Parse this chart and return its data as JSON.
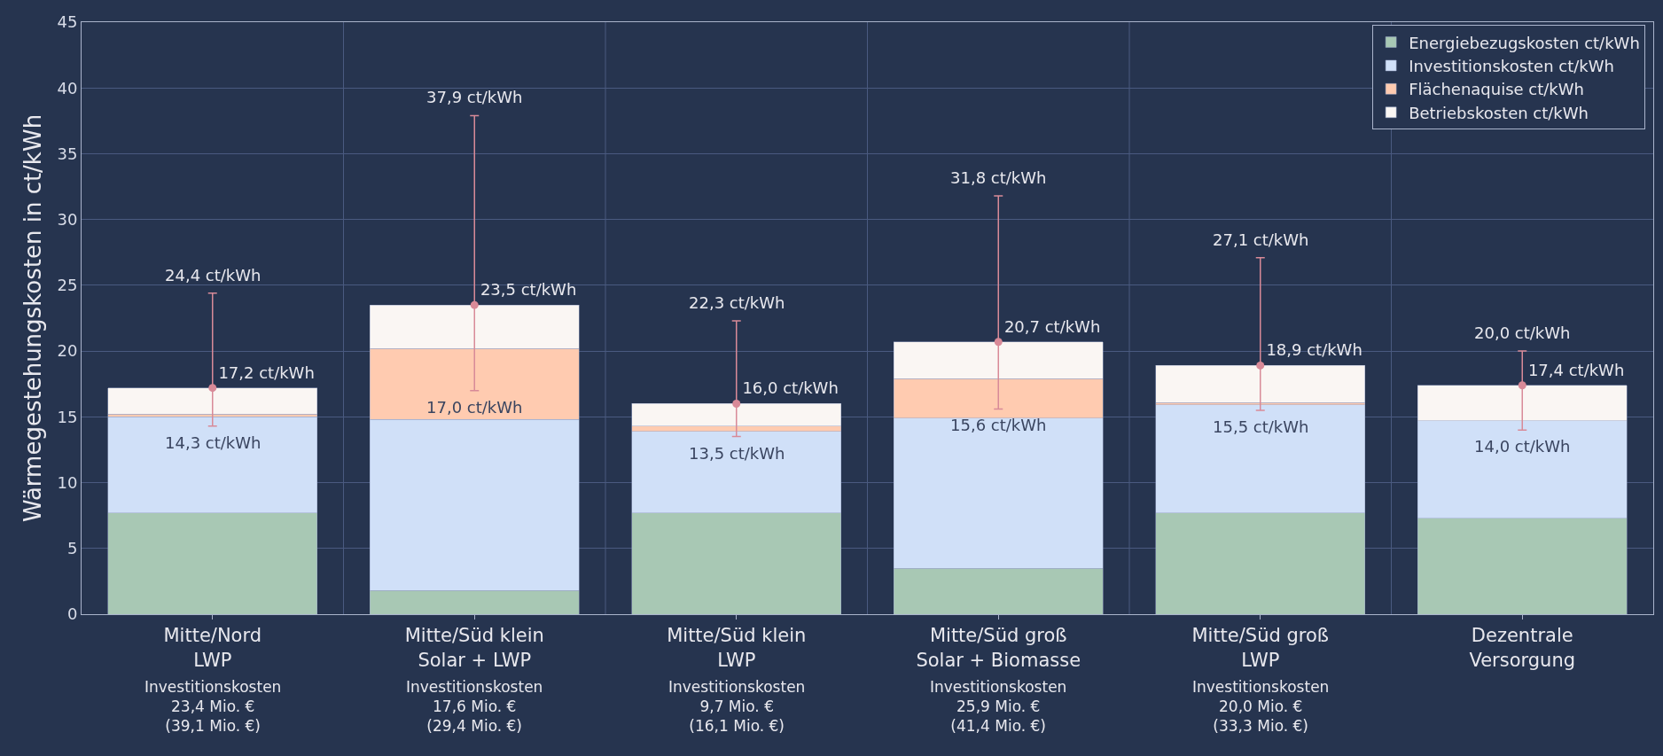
{
  "chart_data": {
    "type": "bar",
    "stacked": true,
    "ylabel": "Wärmegestehungskosten in ct/kWh",
    "categories": [
      "Mitte/Nord\nLWP",
      "Mitte/Süd klein\nSolar + LWP",
      "Mitte/Süd klein\nLWP",
      "Mitte/Süd groß\nSolar + Biomasse",
      "Mitte/Süd groß\nLWP",
      "Dezentrale\nVersorgung"
    ],
    "series": [
      {
        "name": "Energiebezugskosten ct/kWh",
        "color": "#a8c8b4",
        "values": [
          7.7,
          1.8,
          7.7,
          3.5,
          7.7,
          7.3
        ]
      },
      {
        "name": "Investitionskosten ct/kWh",
        "color": "#d0e0f8",
        "values": [
          7.3,
          13.0,
          6.2,
          11.4,
          8.2,
          7.4
        ]
      },
      {
        "name": "Flächenaquise ct/kWh",
        "color": "#ffcbb0",
        "values": [
          0.2,
          5.4,
          0.4,
          3.0,
          0.2,
          0
        ]
      },
      {
        "name": "Betriebskosten ct/kWh",
        "color": "#faf6f3",
        "values": [
          2.0,
          3.3,
          1.7,
          2.8,
          2.8,
          2.7
        ]
      },
      {
        "type": "scatter",
        "color": "#d88a98",
        "x": [
          "Mitte/Nord\nLWP",
          "Mitte/Süd klein\nSolar + LWP",
          "Mitte/Süd klein\nLWP",
          "Mitte/Süd groß\nSolar + Biomasse",
          "Mitte/Süd groß\nLWP",
          "Dezentrale\nVersorgung"
        ],
        "values": [
          17.2,
          23.5,
          16.0,
          20.7,
          18.9,
          17.4
        ],
        "errors": [
          [
            14.3,
            24.4
          ],
          [
            17.0,
            37.9
          ],
          [
            13.5,
            22.3
          ],
          [
            15.6,
            31.8
          ],
          [
            15.5,
            27.1
          ],
          [
            14.0,
            20.0
          ]
        ],
        "value_labels": [
          "17,2 ct/kWh",
          "23,5 ct/kWh",
          "16,0 ct/kWh",
          "20,7 ct/kWh",
          "18,9 ct/kWh",
          "17,4 ct/kWh"
        ]
      }
    ],
    "annotations": [
      {
        "text": "24,4 ct/kWh",
        "x": "Mitte/Nord\nLWP",
        "y": 24.4
      },
      {
        "text": "14,3 ct/kWh",
        "x": "Mitte/Nord\nLWP",
        "y": 14.3
      },
      {
        "text": "37,9 ct/kWh",
        "x": "Mitte/Süd klein\nSolar + LWP",
        "y": 37.9
      },
      {
        "text": "17,0 ct/kWh",
        "x": "Mitte/Süd klein\nSolar + LWP",
        "y": 17.0
      },
      {
        "text": "22,3 ct/kWh",
        "x": "Mitte/Süd klein\nLWP",
        "y": 22.3
      },
      {
        "text": "13,5 ct/kWh",
        "x": "Mitte/Süd klein\nLWP",
        "y": 13.5
      },
      {
        "text": "31,8 ct/kWh",
        "x": "Mitte/Süd groß\nSolar + Biomasse",
        "y": 31.8
      },
      {
        "text": "15,6 ct/kWh",
        "x": "Mitte/Süd groß\nSolar + Biomasse",
        "y": 15.6
      },
      {
        "text": "27,1 ct/kWh",
        "x": "Mitte/Süd groß\nLWP",
        "y": 27.1
      },
      {
        "text": "15,5 ct/kWh",
        "x": "Mitte/Süd groß\nLWP",
        "y": 15.5
      },
      {
        "text": "20,0 ct/kWh",
        "x": "Dezentrale\nVersorgung",
        "y": 20.0
      },
      {
        "text": "14,0 ct/kWh",
        "x": "Dezentrale\nVersorgung",
        "y": 14.0
      },
      "Investitionskosten\n23,4 Mio. €\n(39,1 Mio. €)",
      "Investitionskosten\n17,6 Mio. €\n(29,4 Mio. €)",
      "Investitionskosten\n9,7 Mio. €\n(16,1 Mio. €)",
      "Investitionskosten\n25,9 Mio. €\n(41,4 Mio. €)",
      "Investitionskosten\n20,0 Mio. €\n(33,3 Mio. €)"
    ],
    "ylim": [
      0,
      45
    ],
    "yticks": [
      0,
      5,
      10,
      15,
      20,
      25,
      30,
      35,
      40,
      45
    ],
    "grid": true,
    "legend": "top right",
    "marker": "circle"
  }
}
